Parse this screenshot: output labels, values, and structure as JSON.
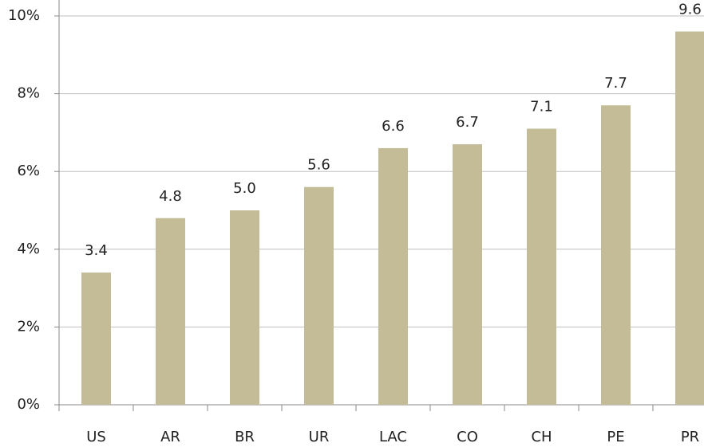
{
  "chart_data": {
    "type": "bar",
    "categories": [
      "US",
      "AR",
      "BR",
      "UR",
      "LAC",
      "CO",
      "CH",
      "PE",
      "PR"
    ],
    "values": [
      3.4,
      4.8,
      5.0,
      5.6,
      6.6,
      6.7,
      7.1,
      7.7,
      9.6
    ],
    "value_labels": [
      "3.4",
      "4.8",
      "5.0",
      "5.6",
      "6.6",
      "6.7",
      "7.1",
      "7.7",
      "9.6"
    ],
    "color": "#c4bc96",
    "ylim": [
      0,
      10
    ],
    "yticks": [
      {
        "value": 0,
        "label": "0%"
      },
      {
        "value": 2,
        "label": "2%"
      },
      {
        "value": 4,
        "label": "4%"
      },
      {
        "value": 6,
        "label": "6%"
      },
      {
        "value": 8,
        "label": "8%"
      },
      {
        "value": 10,
        "label": "10%"
      }
    ],
    "grid": true
  }
}
